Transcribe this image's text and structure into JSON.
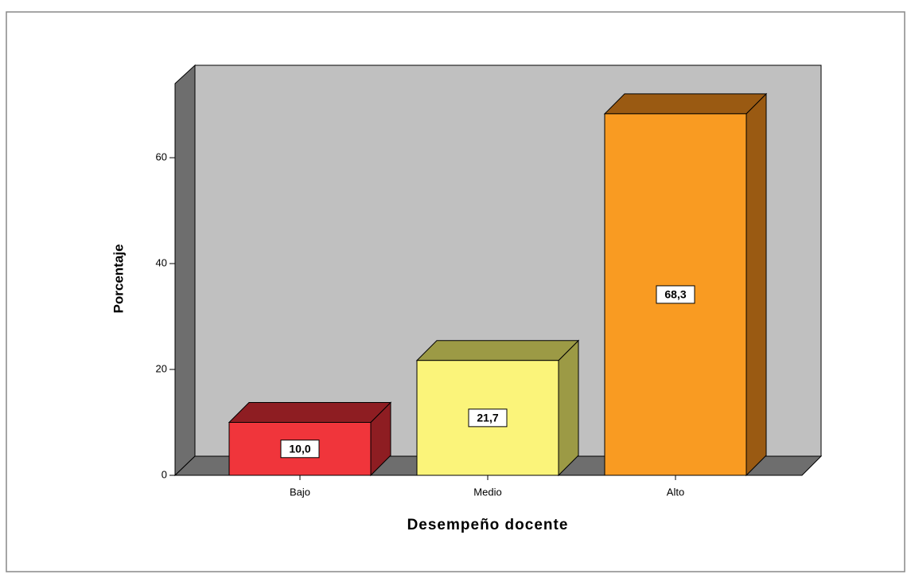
{
  "chart_data": {
    "type": "bar3d",
    "categories": [
      "Bajo",
      "Medio",
      "Alto"
    ],
    "values": [
      10.0,
      21.7,
      68.3
    ],
    "value_labels": [
      "10,0",
      "21,7",
      "68,3"
    ],
    "colors": [
      "#f0353b",
      "#fbf47a",
      "#f99b22"
    ],
    "side_colors": [
      "#8e1d22",
      "#9c9a45",
      "#9a5a12"
    ],
    "xlabel": "Desempeño docente",
    "ylabel": "Porcentaje",
    "ylim": [
      0,
      74
    ],
    "yticks": [
      0,
      20,
      40,
      60
    ]
  }
}
